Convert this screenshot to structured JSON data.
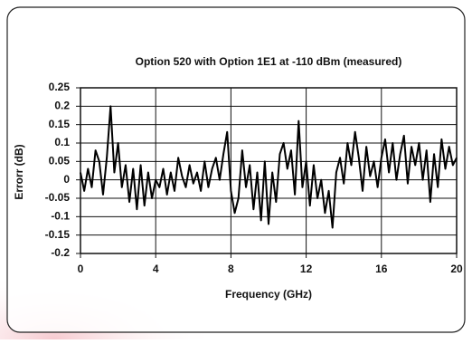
{
  "chart_data": {
    "type": "line",
    "title": "Option 520 with Option 1E1 at -110 dBm (measured)",
    "x_label": "Frequency (GHz)",
    "y_label": "Errorr (dB)",
    "color": "#000000",
    "grid": true,
    "xlim": [
      0,
      20
    ],
    "xticks": [
      0,
      4,
      8,
      12,
      16,
      20
    ],
    "ylim": [
      -0.2,
      0.25
    ],
    "yticks": [
      0.25,
      0.2,
      0.15,
      0.1,
      0.05,
      0,
      -0.05,
      -0.1,
      -0.15,
      -0.2
    ],
    "x": [
      0,
      0.2,
      0.4,
      0.6,
      0.8,
      1,
      1.2,
      1.4,
      1.6,
      1.8,
      2,
      2.2,
      2.4,
      2.6,
      2.8,
      3,
      3.2,
      3.4,
      3.6,
      3.8,
      4,
      4.2,
      4.4,
      4.6,
      4.8,
      5,
      5.2,
      5.4,
      5.6,
      5.8,
      6,
      6.2,
      6.4,
      6.6,
      6.8,
      7,
      7.2,
      7.4,
      7.6,
      7.8,
      8,
      8.2,
      8.4,
      8.6,
      8.8,
      9,
      9.2,
      9.4,
      9.6,
      9.8,
      10,
      10.2,
      10.4,
      10.6,
      10.8,
      11,
      11.2,
      11.4,
      11.6,
      11.8,
      12,
      12.2,
      12.4,
      12.6,
      12.8,
      13,
      13.2,
      13.4,
      13.6,
      13.8,
      14,
      14.2,
      14.4,
      14.6,
      14.8,
      15,
      15.2,
      15.4,
      15.6,
      15.8,
      16,
      16.2,
      16.4,
      16.6,
      16.8,
      17,
      17.2,
      17.4,
      17.6,
      17.8,
      18,
      18.2,
      18.4,
      18.6,
      18.8,
      19,
      19.2,
      19.4,
      19.6,
      19.8,
      20
    ],
    "values": [
      0.02,
      -0.03,
      0.03,
      -0.02,
      0.08,
      0.05,
      -0.04,
      0.06,
      0.2,
      0.02,
      0.1,
      -0.02,
      0.04,
      -0.06,
      0.03,
      -0.08,
      0.04,
      -0.07,
      0.02,
      -0.05,
      0,
      -0.02,
      0.03,
      -0.04,
      0.02,
      -0.03,
      0.06,
      0.01,
      -0.02,
      0.04,
      -0.01,
      0.02,
      -0.03,
      0.05,
      -0.02,
      0.03,
      0.06,
      0,
      0.07,
      0.13,
      -0.03,
      -0.09,
      -0.05,
      0.08,
      -0.02,
      0.04,
      -0.08,
      0.02,
      -0.11,
      0.05,
      -0.12,
      0.02,
      -0.06,
      0.07,
      0.1,
      0.03,
      0.08,
      -0.04,
      0.16,
      -0.02,
      0.05,
      -0.07,
      0.04,
      -0.05,
      0,
      -0.09,
      -0.03,
      -0.13,
      0.02,
      0.06,
      -0.01,
      0.1,
      0.04,
      0.13,
      0.06,
      -0.03,
      0.09,
      0.01,
      0.05,
      -0.02,
      0.06,
      0.11,
      0.02,
      0.1,
      0,
      0.07,
      0.12,
      -0.01,
      0.09,
      0.04,
      0.1,
      0,
      0.08,
      -0.06,
      0.07,
      -0.02,
      0.11,
      0.03,
      0.09,
      0.04,
      0.06
    ]
  }
}
